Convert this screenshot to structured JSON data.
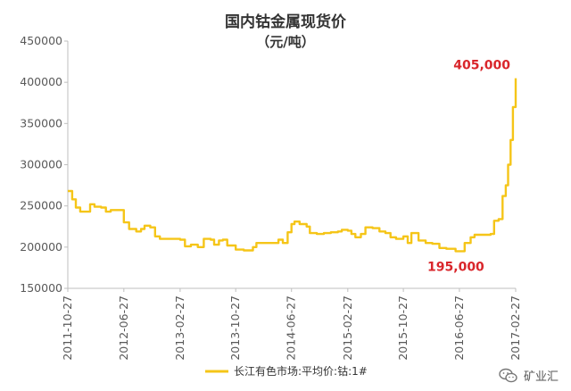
{
  "chart_data": {
    "type": "line",
    "title": "国内钴金属现货价",
    "subtitle": "（元/吨）",
    "ylim": [
      150000,
      450000
    ],
    "yticks": [
      "150000",
      "200000",
      "250000",
      "300000",
      "350000",
      "400000",
      "450000"
    ],
    "xticks": [
      "2011-10-27",
      "2012-06-27",
      "2013-02-27",
      "2013-10-27",
      "2014-06-27",
      "2015-02-27",
      "2015-10-27",
      "2016-06-27",
      "2017-02-27"
    ],
    "series": [
      {
        "name": "长江有色市场:平均价:钴:1#",
        "color": "#f5c518",
        "values": [
          [
            "2011-10-27",
            268000
          ],
          [
            "2011-11-15",
            258000
          ],
          [
            "2011-12-01",
            248000
          ],
          [
            "2011-12-20",
            243000
          ],
          [
            "2012-01-15",
            243000
          ],
          [
            "2012-02-01",
            252000
          ],
          [
            "2012-02-20",
            249000
          ],
          [
            "2012-03-20",
            248000
          ],
          [
            "2012-04-10",
            243000
          ],
          [
            "2012-05-01",
            245000
          ],
          [
            "2012-06-10",
            245000
          ],
          [
            "2012-06-27",
            230000
          ],
          [
            "2012-07-20",
            222000
          ],
          [
            "2012-08-20",
            219000
          ],
          [
            "2012-09-10",
            222000
          ],
          [
            "2012-09-25",
            226000
          ],
          [
            "2012-10-20",
            224000
          ],
          [
            "2012-11-10",
            213000
          ],
          [
            "2012-12-01",
            210000
          ],
          [
            "2013-01-01",
            210000
          ],
          [
            "2013-02-01",
            210000
          ],
          [
            "2013-02-27",
            209000
          ],
          [
            "2013-03-20",
            201000
          ],
          [
            "2013-04-15",
            203000
          ],
          [
            "2013-05-15",
            200000
          ],
          [
            "2013-06-10",
            210000
          ],
          [
            "2013-07-10",
            209000
          ],
          [
            "2013-07-25",
            203000
          ],
          [
            "2013-08-15",
            208000
          ],
          [
            "2013-09-01",
            209000
          ],
          [
            "2013-09-20",
            202000
          ],
          [
            "2013-10-27",
            197000
          ],
          [
            "2013-12-01",
            196000
          ],
          [
            "2014-01-10",
            200000
          ],
          [
            "2014-01-25",
            205000
          ],
          [
            "2014-03-01",
            205000
          ],
          [
            "2014-04-15",
            205000
          ],
          [
            "2014-05-01",
            209000
          ],
          [
            "2014-05-20",
            205000
          ],
          [
            "2014-06-10",
            218000
          ],
          [
            "2014-06-27",
            228000
          ],
          [
            "2014-07-10",
            231000
          ],
          [
            "2014-08-01",
            228000
          ],
          [
            "2014-09-01",
            225000
          ],
          [
            "2014-09-15",
            217000
          ],
          [
            "2014-10-15",
            216000
          ],
          [
            "2014-11-15",
            217000
          ],
          [
            "2014-12-15",
            218000
          ],
          [
            "2015-01-15",
            219000
          ],
          [
            "2015-02-01",
            221000
          ],
          [
            "2015-02-27",
            220000
          ],
          [
            "2015-03-15",
            216000
          ],
          [
            "2015-04-01",
            212000
          ],
          [
            "2015-04-25",
            216000
          ],
          [
            "2015-05-15",
            224000
          ],
          [
            "2015-06-15",
            223000
          ],
          [
            "2015-07-15",
            219000
          ],
          [
            "2015-08-10",
            217000
          ],
          [
            "2015-09-01",
            212000
          ],
          [
            "2015-09-25",
            210000
          ],
          [
            "2015-10-27",
            213000
          ],
          [
            "2015-11-15",
            205000
          ],
          [
            "2015-12-01",
            217000
          ],
          [
            "2016-01-01",
            208000
          ],
          [
            "2016-02-01",
            205000
          ],
          [
            "2016-03-01",
            204000
          ],
          [
            "2016-04-01",
            199000
          ],
          [
            "2016-05-01",
            198000
          ],
          [
            "2016-06-10",
            195000
          ],
          [
            "2016-06-27",
            195000
          ],
          [
            "2016-07-20",
            205000
          ],
          [
            "2016-08-15",
            212000
          ],
          [
            "2016-09-01",
            215000
          ],
          [
            "2016-10-01",
            215000
          ],
          [
            "2016-11-10",
            216000
          ],
          [
            "2016-11-25",
            232000
          ],
          [
            "2016-12-15",
            234000
          ],
          [
            "2017-01-01",
            262000
          ],
          [
            "2017-01-15",
            275000
          ],
          [
            "2017-01-25",
            300000
          ],
          [
            "2017-02-05",
            330000
          ],
          [
            "2017-02-15",
            370000
          ],
          [
            "2017-02-27",
            405000
          ]
        ]
      }
    ],
    "annotations": [
      {
        "text": "405,000",
        "x": "2017-02-27",
        "y": 405000
      },
      {
        "text": "195,000",
        "x": "2016-06-27",
        "y": 195000
      }
    ],
    "legend": "bottom",
    "grid": false
  },
  "watermark": {
    "text": "矿业汇",
    "icon": "wechat-icon"
  }
}
